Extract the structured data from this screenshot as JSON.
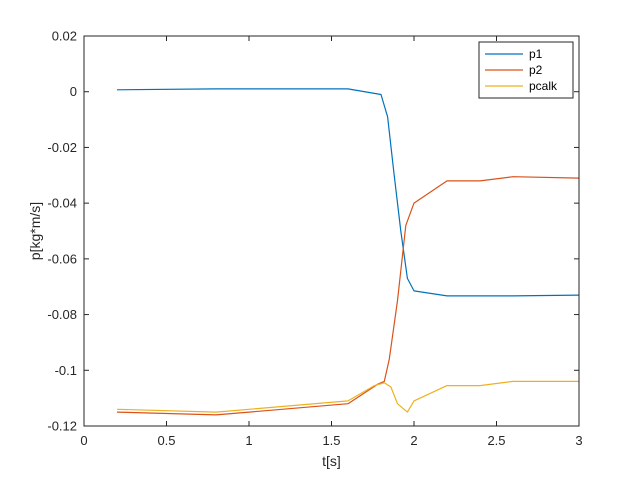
{
  "chart_data": {
    "type": "line",
    "title": "",
    "xlabel": "t[s]",
    "ylabel": "p[kg*m/s]",
    "xlim": [
      0,
      3
    ],
    "ylim": [
      -0.12,
      0.02
    ],
    "x_ticks": [
      0,
      0.5,
      1,
      1.5,
      2,
      2.5,
      3
    ],
    "x_tick_labels": [
      "0",
      "0.5",
      "1",
      "1.5",
      "2",
      "2.5",
      "3"
    ],
    "y_ticks": [
      -0.12,
      -0.1,
      -0.08,
      -0.06,
      -0.04,
      -0.02,
      0,
      0.02
    ],
    "y_tick_labels": [
      "-0.12",
      "-0.1",
      "-0.08",
      "-0.06",
      "-0.04",
      "-0.02",
      "0",
      "0.02"
    ],
    "grid": false,
    "legend_position": "top-right",
    "series": [
      {
        "name": "p1",
        "color": "#0072BD",
        "x": [
          0.2,
          0.8,
          1.6,
          1.8,
          1.84,
          1.88,
          1.92,
          1.96,
          2.0,
          2.2,
          2.4,
          2.6,
          3.0
        ],
        "y": [
          0.0007,
          0.001,
          0.001,
          -0.001,
          -0.009,
          -0.03,
          -0.05,
          -0.067,
          -0.0715,
          -0.0733,
          -0.0733,
          -0.0733,
          -0.073
        ]
      },
      {
        "name": "p2",
        "color": "#D95319",
        "x": [
          0.2,
          0.8,
          1.6,
          1.78,
          1.82,
          1.85,
          1.9,
          1.95,
          2.0,
          2.2,
          2.4,
          2.6,
          3.0
        ],
        "y": [
          -0.115,
          -0.116,
          -0.112,
          -0.105,
          -0.104,
          -0.096,
          -0.075,
          -0.048,
          -0.04,
          -0.032,
          -0.032,
          -0.0305,
          -0.031
        ]
      },
      {
        "name": "pcalk",
        "color": "#EDB120",
        "x": [
          0.2,
          0.8,
          1.6,
          1.76,
          1.82,
          1.86,
          1.9,
          1.94,
          1.96,
          2.0,
          2.2,
          2.4,
          2.6,
          3.0
        ],
        "y": [
          -0.114,
          -0.115,
          -0.111,
          -0.1055,
          -0.1045,
          -0.106,
          -0.112,
          -0.114,
          -0.115,
          -0.111,
          -0.1055,
          -0.1055,
          -0.104,
          -0.104
        ]
      }
    ]
  }
}
